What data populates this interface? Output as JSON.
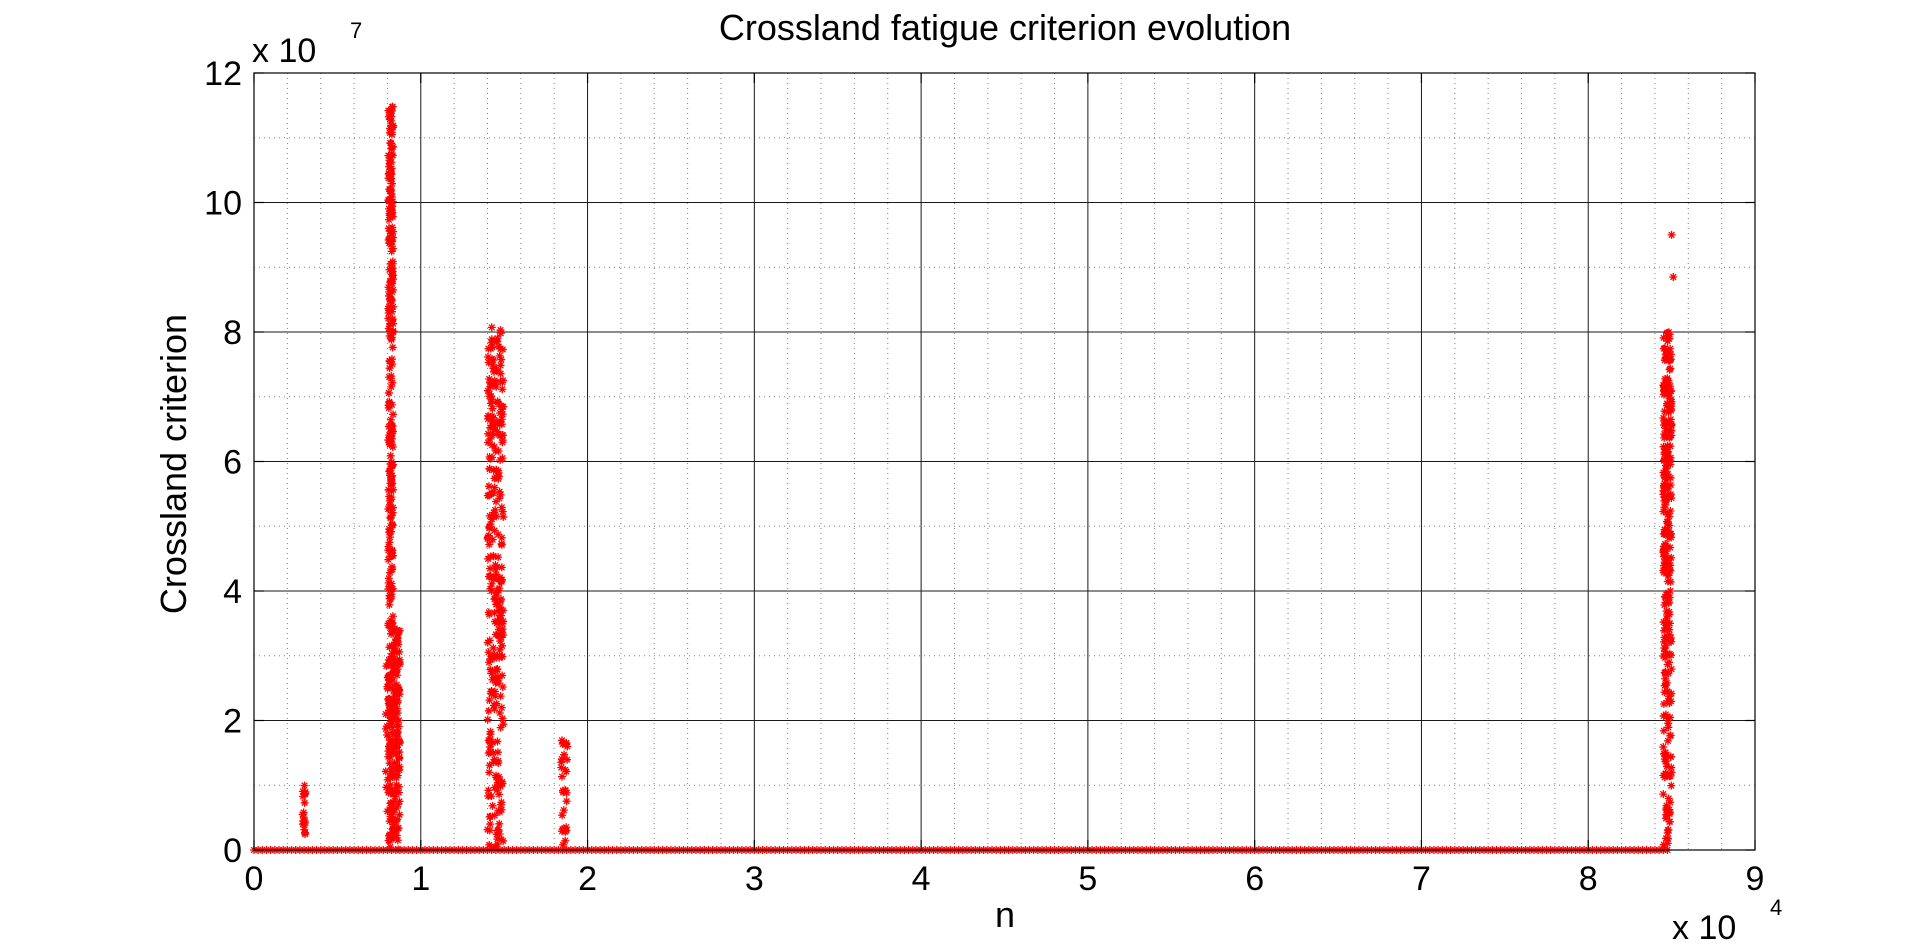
{
  "chart_data": {
    "type": "scatter",
    "title": "Crossland fatigue criterion evolution",
    "xlabel": "n",
    "ylabel": "Crossland criterion",
    "xlim": [
      0,
      90000
    ],
    "ylim": [
      0,
      120000000
    ],
    "x_ticks": [
      0,
      10000,
      20000,
      30000,
      40000,
      50000,
      60000,
      70000,
      80000,
      90000
    ],
    "x_tick_labels": [
      "0",
      "1",
      "2",
      "3",
      "4",
      "5",
      "6",
      "7",
      "8",
      "9"
    ],
    "y_ticks": [
      0,
      20000000,
      40000000,
      60000000,
      80000000,
      100000000,
      120000000
    ],
    "y_tick_labels": [
      "0",
      "2",
      "4",
      "6",
      "8",
      "10",
      "12"
    ],
    "x_multiplier": {
      "base": "x 10",
      "exponent": "4"
    },
    "y_multiplier": {
      "base": "x 10",
      "exponent": "7"
    },
    "grid": "major and minor",
    "legend": "none",
    "marker": "*",
    "marker_color": "#ff0000",
    "series": [
      {
        "baseline": {
          "x_range": [
            0,
            84800
          ],
          "y": 0
        },
        "clusters": [
          {
            "x_range": [
              2900,
              3100
            ],
            "y_max": 10000000,
            "points": 18
          },
          {
            "x_range": [
              7900,
              8300
            ],
            "y_max": 30000000,
            "points": 40
          },
          {
            "x_range": [
              8050,
              8350
            ],
            "y_max": 115000000,
            "points": 320
          },
          {
            "x_range": [
              8350,
              8750
            ],
            "y_max": 35000000,
            "points": 120
          },
          {
            "x_range": [
              14000,
              14950
            ],
            "y_max": 81000000,
            "points": 300
          },
          {
            "x_range": [
              18400,
              18800
            ],
            "y_max": 17000000,
            "points": 30
          },
          {
            "x_range": [
              84500,
              85000
            ],
            "y_max": 80000000,
            "points": 300
          }
        ],
        "outliers": [
          {
            "x": 85000,
            "y": 95000000
          },
          {
            "x": 85100,
            "y": 88500000
          }
        ]
      }
    ]
  }
}
